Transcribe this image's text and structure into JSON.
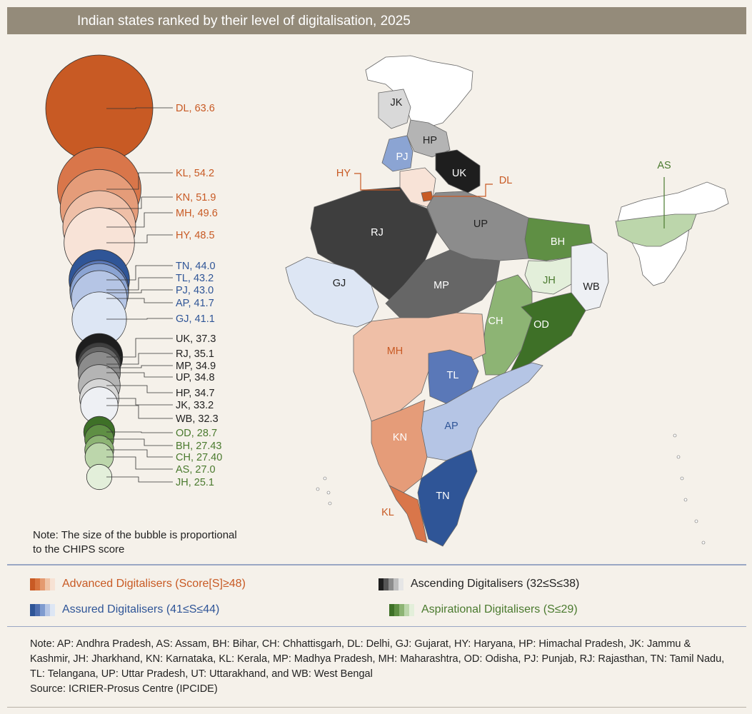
{
  "title": "Indian states ranked by their level of digitalisation, 2025",
  "note_bubble": "Note: The size of the bubble is proportional to the CHIPS score",
  "categories": {
    "advanced": {
      "label": "Advanced Digitalisers (Score[S]≥48)",
      "color": "#c85a24",
      "shades": [
        "#c85a24",
        "#d8743e",
        "#e49a70",
        "#efc3a6",
        "#f7e2d4"
      ]
    },
    "ascending": {
      "label": "Ascending Digitalisers (32≤S≤38)",
      "color": "#222222",
      "shades": [
        "#1e1e1e",
        "#555555",
        "#8c8c8c",
        "#bdbdbd",
        "#e6e6e6"
      ]
    },
    "assured": {
      "label": "Assured Digitalisers (41≤S≤44)",
      "color": "#2f5597",
      "shades": [
        "#2f5597",
        "#4f6fb0",
        "#7f9bcf",
        "#b6c6e5",
        "#dde6f4"
      ]
    },
    "aspirational": {
      "label": "Aspirational Digitalisers (S≤29)",
      "color": "#4a7a2e",
      "shades": [
        "#3e7027",
        "#5f8f44",
        "#8db474",
        "#bcd6ab",
        "#e3efda"
      ]
    }
  },
  "chart_data": {
    "type": "bubble",
    "title": "Indian states ranked by their level of digitalisation, 2025",
    "size_variable": "CHIPS score",
    "series": [
      {
        "state": "DL",
        "score": 63.6,
        "label": "DL, 63.6",
        "group": "advanced",
        "fill": "#c85a24"
      },
      {
        "state": "KL",
        "score": 54.2,
        "label": "KL, 54.2",
        "group": "advanced",
        "fill": "#d9764a"
      },
      {
        "state": "KN",
        "score": 51.9,
        "label": "KN, 51.9",
        "group": "advanced",
        "fill": "#e59c79"
      },
      {
        "state": "MH",
        "score": 49.6,
        "label": "MH, 49.6",
        "group": "advanced",
        "fill": "#efbfa7"
      },
      {
        "state": "HY",
        "score": 48.5,
        "label": "HY, 48.5",
        "group": "advanced",
        "fill": "#f8e3d7"
      },
      {
        "state": "TN",
        "score": 44.0,
        "label": "TN, 44.0",
        "group": "assured",
        "fill": "#2f5597"
      },
      {
        "state": "TL",
        "score": 43.2,
        "label": "TL, 43.2",
        "group": "assured",
        "fill": "#5a78b8"
      },
      {
        "state": "PJ",
        "score": 43.0,
        "label": "PJ, 43.0",
        "group": "assured",
        "fill": "#8ba4d3"
      },
      {
        "state": "AP",
        "score": 41.7,
        "label": "AP, 41.7",
        "group": "assured",
        "fill": "#b5c5e5"
      },
      {
        "state": "GJ",
        "score": 41.1,
        "label": "GJ, 41.1",
        "group": "assured",
        "fill": "#dde6f4"
      },
      {
        "state": "UK",
        "score": 37.3,
        "label": "UK, 37.3",
        "group": "ascending",
        "fill": "#1e1e1e"
      },
      {
        "state": "RJ",
        "score": 35.1,
        "label": "RJ, 35.1",
        "group": "ascending",
        "fill": "#3e3e3e"
      },
      {
        "state": "MP",
        "score": 34.9,
        "label": "MP, 34.9",
        "group": "ascending",
        "fill": "#666666"
      },
      {
        "state": "UP",
        "score": 34.8,
        "label": "UP, 34.8",
        "group": "ascending",
        "fill": "#8c8c8c"
      },
      {
        "state": "HP",
        "score": 34.7,
        "label": "HP, 34.7",
        "group": "ascending",
        "fill": "#b4b4b4"
      },
      {
        "state": "JK",
        "score": 33.2,
        "label": "JK, 33.2",
        "group": "ascending",
        "fill": "#d6d6d6"
      },
      {
        "state": "WB",
        "score": 32.3,
        "label": "WB, 32.3",
        "group": "ascending",
        "fill": "#eef0f4"
      },
      {
        "state": "OD",
        "score": 28.7,
        "label": "OD, 28.7",
        "group": "aspirational",
        "fill": "#3e7027"
      },
      {
        "state": "BH",
        "score": 27.43,
        "label": "BH, 27.43",
        "group": "aspirational",
        "fill": "#5f8f44"
      },
      {
        "state": "CH",
        "score": 27.4,
        "label": "CH, 27.40",
        "group": "aspirational",
        "fill": "#8db474"
      },
      {
        "state": "AS",
        "score": 27.0,
        "label": "AS, 27.0",
        "group": "aspirational",
        "fill": "#bcd6ab"
      },
      {
        "state": "JH",
        "score": 25.1,
        "label": "JH, 25.1",
        "group": "aspirational",
        "fill": "#e3efda"
      }
    ]
  },
  "map": {
    "labels": {
      "JK": "JK",
      "HP": "HP",
      "PJ": "PJ",
      "UK": "UK",
      "HY": "HY",
      "DL": "DL",
      "RJ": "RJ",
      "UP": "UP",
      "AS": "AS",
      "BH": "BH",
      "GJ": "GJ",
      "MP": "MP",
      "JH": "JH",
      "WB": "WB",
      "CH": "CH",
      "OD": "OD",
      "MH": "MH",
      "TL": "TL",
      "AP": "AP",
      "KN": "KN",
      "TN": "TN",
      "KL": "KL"
    },
    "fills": {
      "JK": "#d9d9d9",
      "HP": "#b4b4b4",
      "PJ": "#8ba4d3",
      "UK": "#1e1e1e",
      "HY": "#f8e3d7",
      "DL": "#c85a24",
      "RJ": "#3e3e3e",
      "UP": "#8c8c8c",
      "AS": "#bcd6ab",
      "BH": "#5f8f44",
      "GJ": "#dde6f4",
      "MP": "#666666",
      "JH": "#e3efda",
      "WB": "#eef0f4",
      "CH": "#8db474",
      "OD": "#3e7027",
      "MH": "#efbfa7",
      "TL": "#5a78b8",
      "AP": "#b5c5e5",
      "KN": "#e59c79",
      "TN": "#2f5597",
      "KL": "#d9764a",
      "NE": "#ffffff",
      "LA": "#ffffff"
    }
  },
  "footnote": {
    "line1": "Note: AP: Andhra Pradesh, AS: Assam, BH: Bihar, CH: Chhattisgarh, DL: Delhi, GJ: Gujarat, HY: Haryana, HP: Himachal Pradesh, JK: Jammu & Kashmir, JH: Jharkhand, KN: Karnataka, KL: Kerala, MP: Madhya Pradesh, MH: Maharashtra, OD: Odisha, PJ: Punjab, RJ: Rajasthan, TN: Tamil Nadu, TL: Telangana, UP: Uttar Pradesh, UT: Uttarakhand, and WB: West Bengal",
    "source": "Source: ICRIER-Prosus Centre (IPCIDE)"
  }
}
